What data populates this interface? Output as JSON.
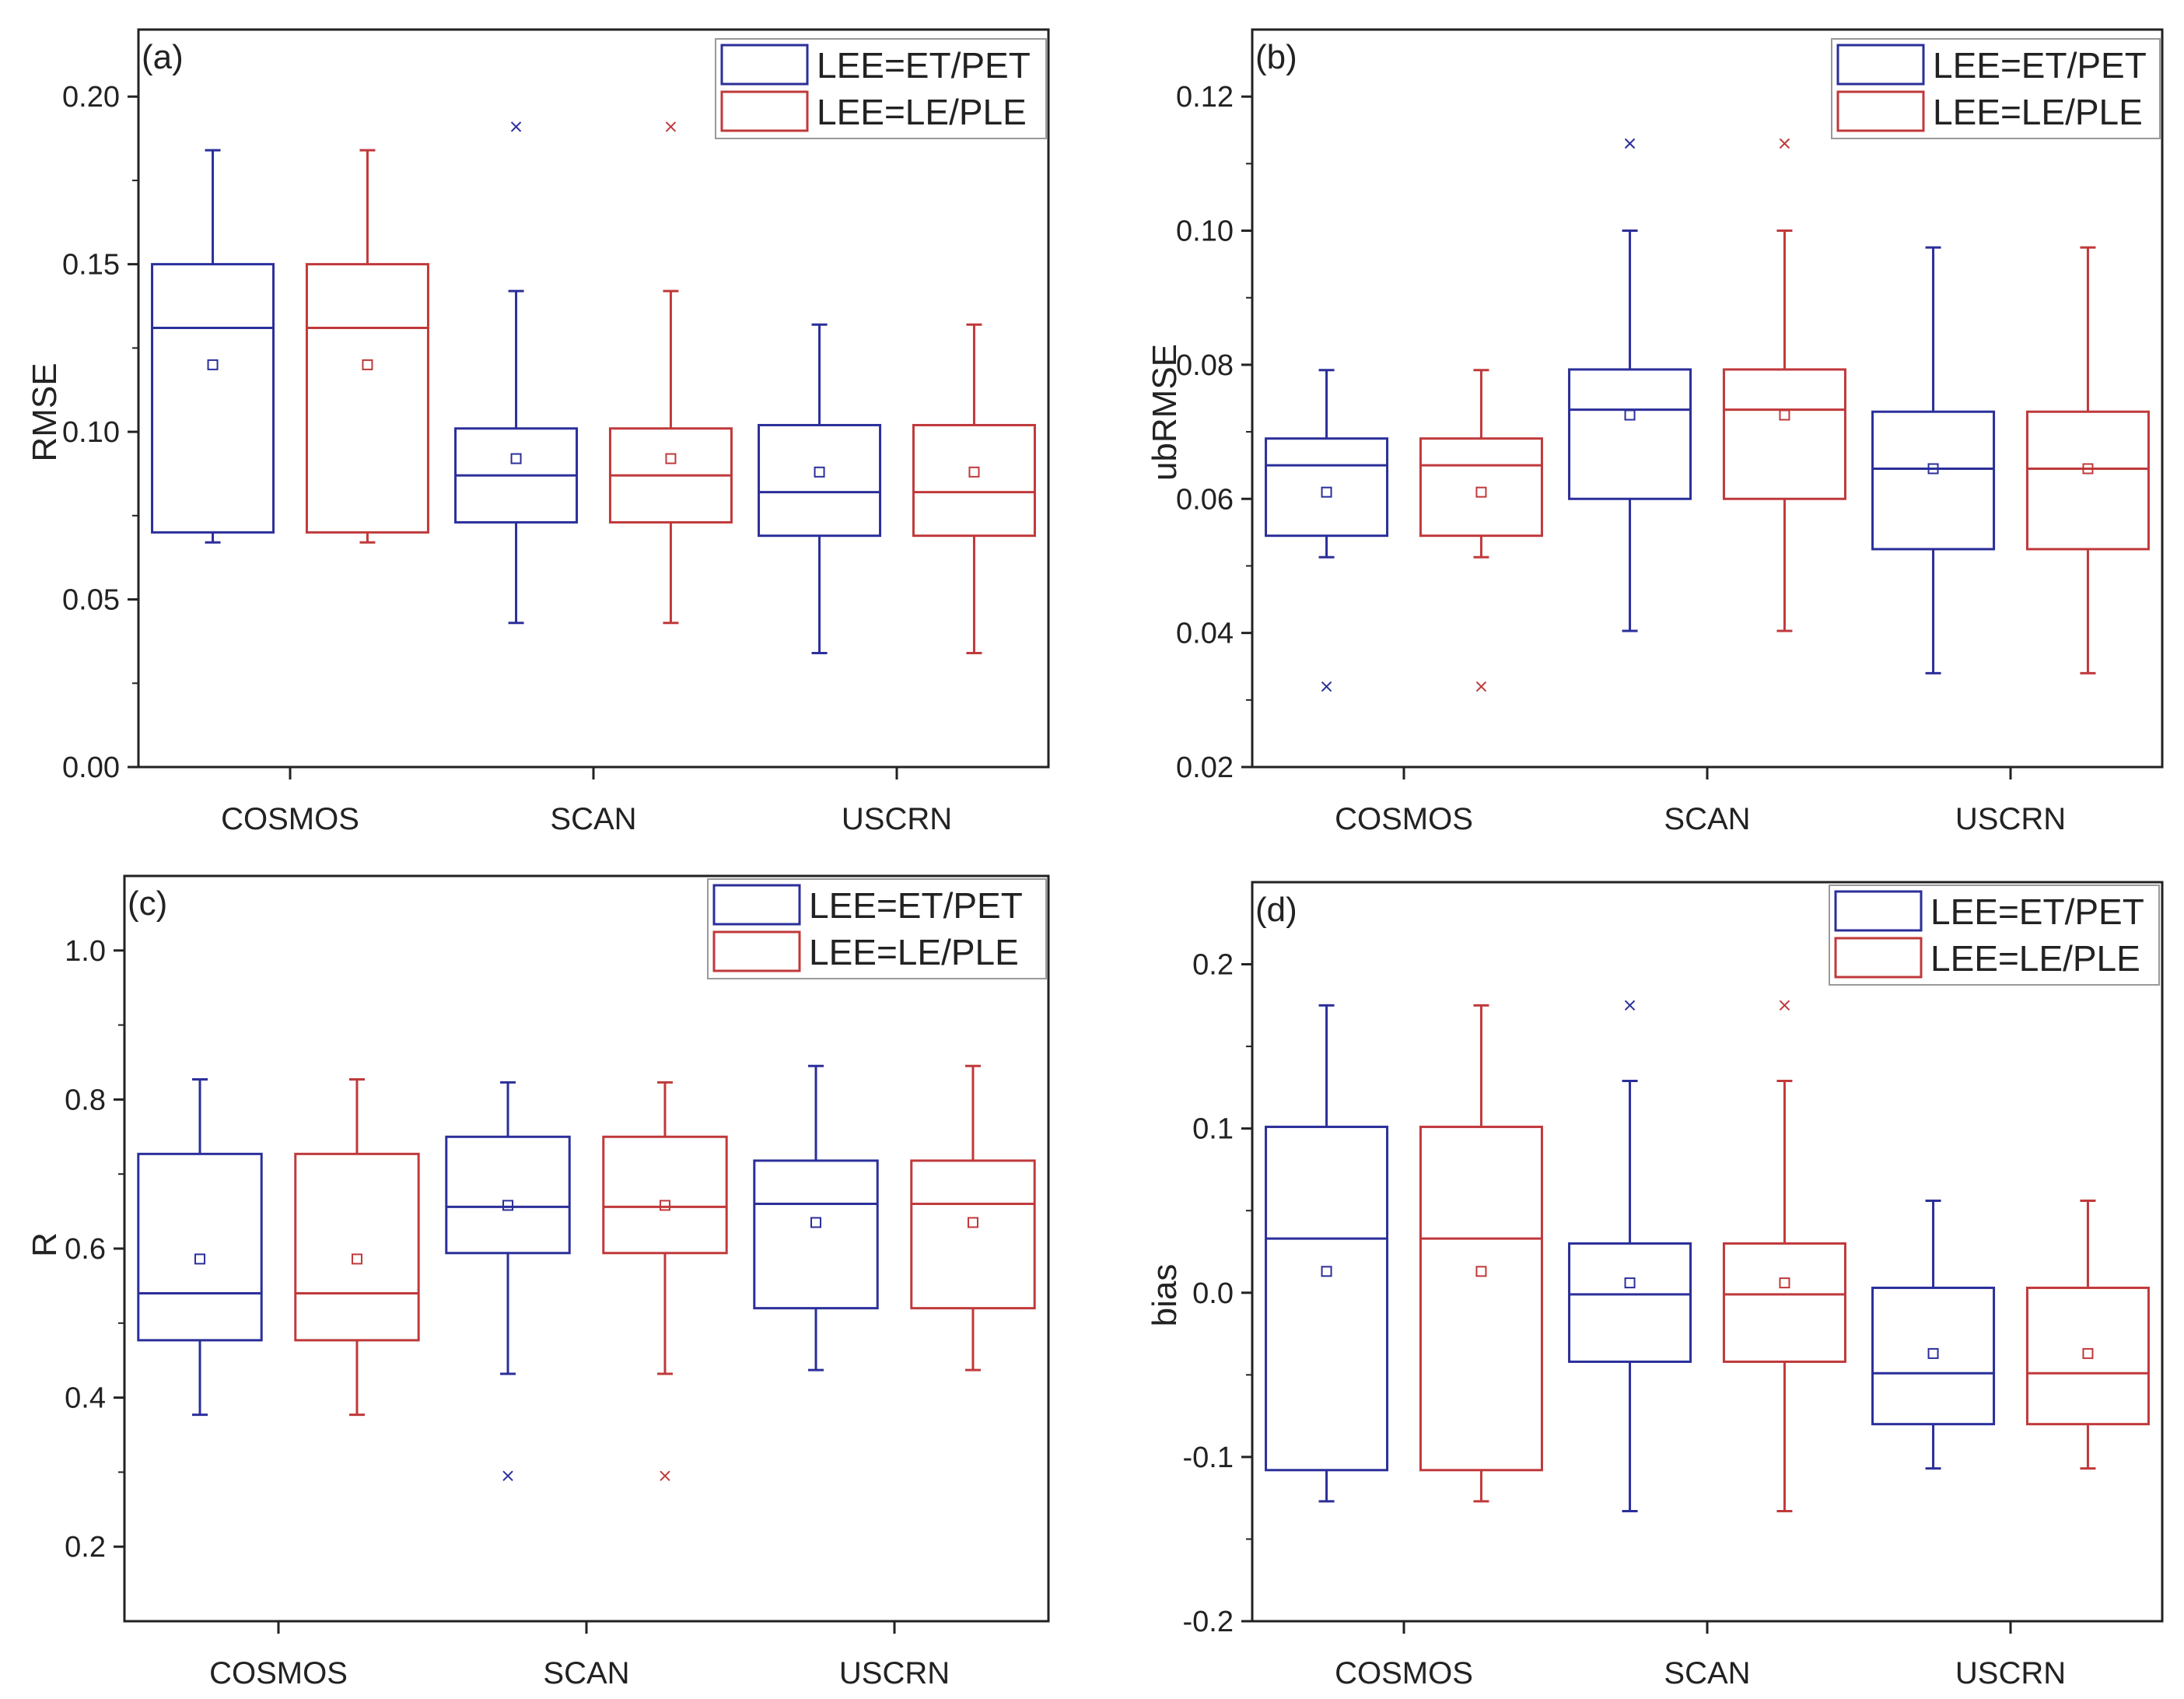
{
  "legend": {
    "colors": {
      "LEE=ET/PET": "#2b2f9a",
      "LEE=LE/PLE": "#c0393b"
    }
  },
  "chart_data": [
    {
      "type": "box",
      "panel_label": "(a)",
      "ylabel": "RMSE",
      "ylim": [
        0,
        0.22
      ],
      "yticks": [
        0.0,
        0.05,
        0.1,
        0.15,
        0.2
      ],
      "ytick_labels": [
        "0.00",
        "0.05",
        "0.10",
        "0.15",
        "0.20"
      ],
      "categories": [
        "COSMOS",
        "SCAN",
        "USCRN"
      ],
      "grid": false,
      "legend_position": "top-right",
      "series": [
        {
          "name": "LEE=ET/PET",
          "color": "#2b2f9a",
          "boxes": [
            {
              "q1": 0.07,
              "median": 0.131,
              "q3": 0.15,
              "whisker_low": 0.067,
              "whisker_high": 0.184,
              "mean": 0.12,
              "outliers": []
            },
            {
              "q1": 0.073,
              "median": 0.087,
              "q3": 0.101,
              "whisker_low": 0.043,
              "whisker_high": 0.142,
              "mean": 0.092,
              "outliers": [
                0.191
              ]
            },
            {
              "q1": 0.069,
              "median": 0.082,
              "q3": 0.102,
              "whisker_low": 0.034,
              "whisker_high": 0.132,
              "mean": 0.088,
              "outliers": []
            }
          ]
        },
        {
          "name": "LEE=LE/PLE",
          "color": "#c0393b",
          "boxes": [
            {
              "q1": 0.07,
              "median": 0.131,
              "q3": 0.15,
              "whisker_low": 0.067,
              "whisker_high": 0.184,
              "mean": 0.12,
              "outliers": []
            },
            {
              "q1": 0.073,
              "median": 0.087,
              "q3": 0.101,
              "whisker_low": 0.043,
              "whisker_high": 0.142,
              "mean": 0.092,
              "outliers": [
                0.191
              ]
            },
            {
              "q1": 0.069,
              "median": 0.082,
              "q3": 0.102,
              "whisker_low": 0.034,
              "whisker_high": 0.132,
              "mean": 0.088,
              "outliers": []
            }
          ]
        }
      ]
    },
    {
      "type": "box",
      "panel_label": "(b)",
      "ylabel": "ubRMSE",
      "ylim": [
        0.02,
        0.13
      ],
      "yticks": [
        0.02,
        0.04,
        0.06,
        0.08,
        0.1,
        0.12
      ],
      "ytick_labels": [
        "0.02",
        "0.04",
        "0.06",
        "0.08",
        "0.10",
        "0.12"
      ],
      "categories": [
        "COSMOS",
        "SCAN",
        "USCRN"
      ],
      "grid": false,
      "legend_position": "top-right",
      "series": [
        {
          "name": "LEE=ET/PET",
          "color": "#2b2f9a",
          "boxes": [
            {
              "q1": 0.0545,
              "median": 0.065,
              "q3": 0.069,
              "whisker_low": 0.0513,
              "whisker_high": 0.0792,
              "mean": 0.061,
              "outliers": [
                0.032
              ]
            },
            {
              "q1": 0.06,
              "median": 0.0733,
              "q3": 0.0793,
              "whisker_low": 0.0403,
              "whisker_high": 0.1,
              "mean": 0.0725,
              "outliers": [
                0.113
              ]
            },
            {
              "q1": 0.0525,
              "median": 0.0645,
              "q3": 0.073,
              "whisker_low": 0.034,
              "whisker_high": 0.0975,
              "mean": 0.0645,
              "outliers": []
            }
          ]
        },
        {
          "name": "LEE=LE/PLE",
          "color": "#c0393b",
          "boxes": [
            {
              "q1": 0.0545,
              "median": 0.065,
              "q3": 0.069,
              "whisker_low": 0.0513,
              "whisker_high": 0.0792,
              "mean": 0.061,
              "outliers": [
                0.032
              ]
            },
            {
              "q1": 0.06,
              "median": 0.0733,
              "q3": 0.0793,
              "whisker_low": 0.0403,
              "whisker_high": 0.1,
              "mean": 0.0725,
              "outliers": [
                0.113
              ]
            },
            {
              "q1": 0.0525,
              "median": 0.0645,
              "q3": 0.073,
              "whisker_low": 0.034,
              "whisker_high": 0.0975,
              "mean": 0.0645,
              "outliers": []
            }
          ]
        }
      ]
    },
    {
      "type": "box",
      "panel_label": "(c)",
      "ylabel": "R",
      "ylim": [
        0.1,
        1.1
      ],
      "yticks": [
        0.2,
        0.4,
        0.6,
        0.8,
        1.0
      ],
      "ytick_labels": [
        "0.2",
        "0.4",
        "0.6",
        "0.8",
        "1.0"
      ],
      "categories": [
        "COSMOS",
        "SCAN",
        "USCRN"
      ],
      "grid": false,
      "legend_position": "top-right",
      "series": [
        {
          "name": "LEE=ET/PET",
          "color": "#2b2f9a",
          "boxes": [
            {
              "q1": 0.477,
              "median": 0.54,
              "q3": 0.727,
              "whisker_low": 0.377,
              "whisker_high": 0.827,
              "mean": 0.586,
              "outliers": []
            },
            {
              "q1": 0.594,
              "median": 0.656,
              "q3": 0.75,
              "whisker_low": 0.432,
              "whisker_high": 0.823,
              "mean": 0.658,
              "outliers": [
                0.295
              ]
            },
            {
              "q1": 0.52,
              "median": 0.66,
              "q3": 0.718,
              "whisker_low": 0.437,
              "whisker_high": 0.845,
              "mean": 0.635,
              "outliers": []
            }
          ]
        },
        {
          "name": "LEE=LE/PLE",
          "color": "#c0393b",
          "boxes": [
            {
              "q1": 0.477,
              "median": 0.54,
              "q3": 0.727,
              "whisker_low": 0.377,
              "whisker_high": 0.827,
              "mean": 0.586,
              "outliers": []
            },
            {
              "q1": 0.594,
              "median": 0.656,
              "q3": 0.75,
              "whisker_low": 0.432,
              "whisker_high": 0.823,
              "mean": 0.658,
              "outliers": [
                0.295
              ]
            },
            {
              "q1": 0.52,
              "median": 0.66,
              "q3": 0.718,
              "whisker_low": 0.437,
              "whisker_high": 0.845,
              "mean": 0.635,
              "outliers": []
            }
          ]
        }
      ]
    },
    {
      "type": "box",
      "panel_label": "(d)",
      "ylabel": "bias",
      "ylim": [
        -0.2,
        0.25
      ],
      "yticks": [
        -0.2,
        -0.1,
        0.0,
        0.1,
        0.2
      ],
      "ytick_labels": [
        "-0.2",
        "-0.1",
        "0.0",
        "0.1",
        "0.2"
      ],
      "categories": [
        "COSMOS",
        "SCAN",
        "USCRN"
      ],
      "grid": false,
      "legend_position": "top-right",
      "series": [
        {
          "name": "LEE=ET/PET",
          "color": "#2b2f9a",
          "boxes": [
            {
              "q1": -0.108,
              "median": 0.033,
              "q3": 0.101,
              "whisker_low": -0.127,
              "whisker_high": 0.175,
              "mean": 0.013,
              "outliers": []
            },
            {
              "q1": -0.042,
              "median": -0.001,
              "q3": 0.03,
              "whisker_low": -0.133,
              "whisker_high": 0.129,
              "mean": 0.006,
              "outliers": [
                0.175
              ]
            },
            {
              "q1": -0.08,
              "median": -0.049,
              "q3": 0.003,
              "whisker_low": -0.107,
              "whisker_high": 0.056,
              "mean": -0.037,
              "outliers": []
            }
          ]
        },
        {
          "name": "LEE=LE/PLE",
          "color": "#c0393b",
          "boxes": [
            {
              "q1": -0.108,
              "median": 0.033,
              "q3": 0.101,
              "whisker_low": -0.127,
              "whisker_high": 0.175,
              "mean": 0.013,
              "outliers": []
            },
            {
              "q1": -0.042,
              "median": -0.001,
              "q3": 0.03,
              "whisker_low": -0.133,
              "whisker_high": 0.129,
              "mean": 0.006,
              "outliers": [
                0.175
              ]
            },
            {
              "q1": -0.08,
              "median": -0.049,
              "q3": 0.003,
              "whisker_low": -0.107,
              "whisker_high": 0.056,
              "mean": -0.037,
              "outliers": []
            }
          ]
        }
      ]
    }
  ]
}
